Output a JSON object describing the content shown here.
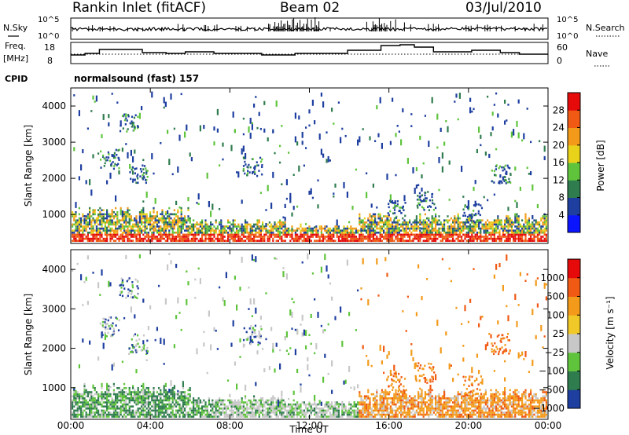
{
  "header": {
    "title": "Rankin Inlet (fitACF)",
    "beam": "Beam 02",
    "date": "03/Jul/2010"
  },
  "strips": {
    "nsky_label": "N.Sky",
    "nsky_ticks": [
      "10^5",
      "10^0"
    ],
    "nsearch_label": "N.Search",
    "nsearch_ticks": [
      "10^5",
      "10^0"
    ],
    "freq_label": "Freq.",
    "freq_unit": "[MHz]",
    "freq_ticks": [
      "18",
      "8"
    ],
    "nave_label": "Nave",
    "nave_ticks": [
      "60",
      "0"
    ],
    "cpid_label": "CPID",
    "cpid_value": "normalsound (fast) 157"
  },
  "chart_data": [
    {
      "type": "heatmap",
      "name": "power",
      "ylabel": "Slant Range [km]",
      "y_ticks": [
        "4000",
        "3000",
        "2000",
        "1000"
      ],
      "ylim": [
        200,
        4500
      ],
      "colorbar_label": "Power [dB]",
      "colorbar_ticks": [
        "28",
        "24",
        "20",
        "16",
        "12",
        "8",
        "4"
      ],
      "colors": [
        "#0a14ff",
        "#1e3fa0",
        "#2f7c4e",
        "#5fc43c",
        "#e8d21a",
        "#f39a1a",
        "#f05a14",
        "#e60a0a"
      ]
    },
    {
      "type": "heatmap",
      "name": "velocity",
      "ylabel": "Slant Range [km]",
      "y_ticks": [
        "4000",
        "3000",
        "2000",
        "1000"
      ],
      "ylim": [
        200,
        4500
      ],
      "colorbar_label": "Velocity [m s⁻¹]",
      "colorbar_ticks": [
        "1000",
        "500",
        "100",
        "25",
        "−25",
        "−100",
        "−500",
        "−1000"
      ],
      "colors": [
        "#1e3fa0",
        "#2f7c4e",
        "#5fc43c",
        "#c8c8c8",
        "#f0c828",
        "#f39a1a",
        "#f05a14",
        "#e60a0a"
      ]
    }
  ],
  "xaxis": {
    "ticks": [
      "00:00",
      "04:00",
      "08:00",
      "12:00",
      "16:00",
      "20:00",
      "00:00"
    ],
    "label": "Time UT"
  }
}
